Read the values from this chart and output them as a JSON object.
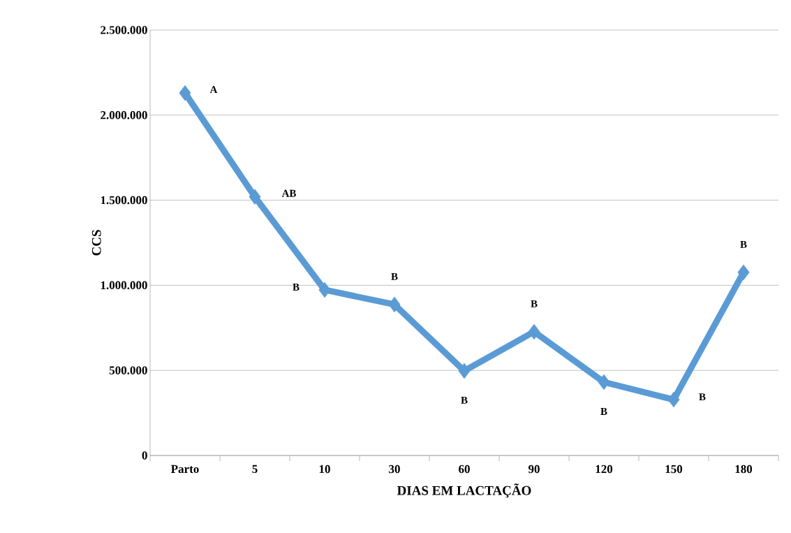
{
  "chart_data": {
    "type": "line",
    "xlabel": "DIAS EM LACTAÇÃO",
    "ylabel": "CCS",
    "categories": [
      "Parto",
      "5",
      "10",
      "30",
      "60",
      "90",
      "120",
      "150",
      "180"
    ],
    "series": [
      {
        "color": "#5b9bd5",
        "values": [
          2130000,
          1520000,
          973000,
          887000,
          497000,
          727000,
          431000,
          328000,
          1076000
        ]
      }
    ],
    "ylim": [
      0,
      2500000
    ],
    "yticks": [
      0,
      {
        "value": 500000,
        "label": "500.000"
      },
      {
        "value": 1000000,
        "label": "1.000.000"
      },
      {
        "value": 1500000,
        "label": "1.500.000"
      },
      {
        "value": 2000000,
        "label": "2.000.000"
      },
      {
        "value": 2500000,
        "label": "2.500.000"
      }
    ],
    "grid": "y",
    "marker": "diamond",
    "line_style": "solid",
    "legend": false,
    "annotations": [
      {
        "text": "A",
        "x": "Parto",
        "y": 2130000
      },
      {
        "text": "AB",
        "x": "5",
        "y": 1520000
      },
      {
        "text": "B",
        "x": "10",
        "y": 973000
      },
      {
        "text": "B",
        "x": "30",
        "y": 887000
      },
      {
        "text": "B",
        "x": "60",
        "y": 497000
      },
      {
        "text": "B",
        "x": "90",
        "y": 727000
      },
      {
        "text": "B",
        "x": "120",
        "y": 431000
      },
      {
        "text": "B",
        "x": "150",
        "y": 328000
      },
      {
        "text": "B",
        "x": "180",
        "y": 1076000
      }
    ]
  }
}
